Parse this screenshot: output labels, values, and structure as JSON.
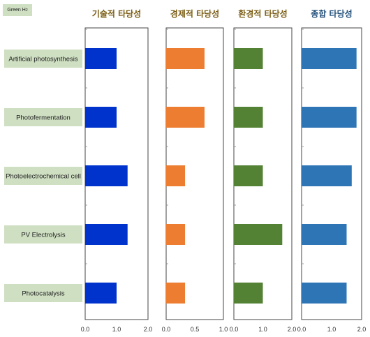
{
  "corner_label": {
    "main": "Green H",
    "sub": "2"
  },
  "chart_data": {
    "type": "bar",
    "orientation": "horizontal",
    "categories": [
      "Artificial photosynthesis",
      "Photofermentation",
      "Photoelectrochemical cell",
      "PV Electrolysis",
      "Photocatalysis"
    ],
    "panels": [
      {
        "title": "기술적 타당성",
        "title_color": "#7a5c12",
        "color": "#0033cc",
        "xlim": [
          0,
          2.0
        ],
        "ticks": [
          "0.0",
          "1.0",
          "2.0"
        ],
        "values": [
          1.0,
          1.0,
          1.35,
          1.35,
          1.0
        ]
      },
      {
        "title": "경제적 타당성",
        "title_color": "#7a5c12",
        "color": "#ed7d31",
        "xlim": [
          0,
          1.0
        ],
        "ticks": [
          "0.0",
          "0.5",
          "1.0"
        ],
        "values": [
          0.67,
          0.67,
          0.33,
          0.33,
          0.33
        ]
      },
      {
        "title": "환경적 타당성",
        "title_color": "#7a5c12",
        "color": "#548235",
        "xlim": [
          0,
          2.0
        ],
        "ticks": [
          "0.0",
          "1.0",
          "2.0"
        ],
        "values": [
          1.0,
          1.0,
          1.0,
          1.67,
          1.0
        ]
      },
      {
        "title": "종합 타당성",
        "title_color": "#1f4e79",
        "color": "#2e75b6",
        "xlim": [
          0,
          2.0
        ],
        "ticks": [
          "0.0",
          "1.0",
          "2.0"
        ],
        "values": [
          1.83,
          1.83,
          1.67,
          1.5,
          1.5
        ]
      }
    ]
  }
}
